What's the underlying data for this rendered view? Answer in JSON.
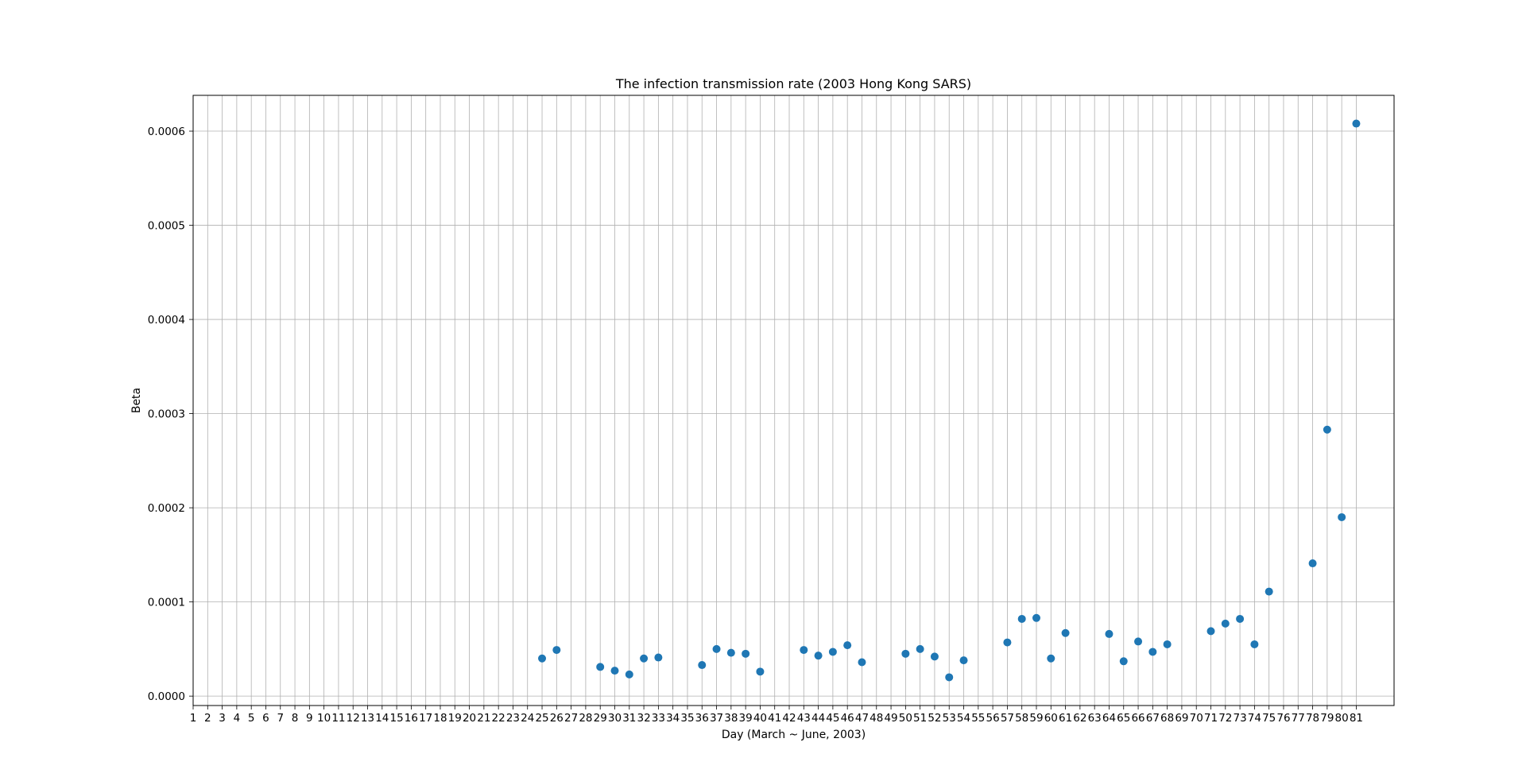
{
  "chart_data": {
    "type": "scatter",
    "title": "The infection transmission rate (2003 Hong Kong SARS)",
    "xlabel": "Day (March ~ June, 2003)",
    "ylabel": "Beta",
    "grid": true,
    "xlim": [
      1,
      83.6
    ],
    "ylim": [
      -1e-05,
      0.000638
    ],
    "x_ticks": [
      1,
      2,
      3,
      4,
      5,
      6,
      7,
      8,
      9,
      10,
      11,
      12,
      13,
      14,
      15,
      16,
      17,
      18,
      19,
      20,
      21,
      22,
      23,
      24,
      25,
      26,
      27,
      28,
      29,
      30,
      31,
      32,
      33,
      34,
      35,
      36,
      37,
      38,
      39,
      40,
      41,
      42,
      43,
      44,
      45,
      46,
      47,
      48,
      49,
      50,
      51,
      52,
      53,
      54,
      55,
      56,
      57,
      58,
      59,
      60,
      61,
      62,
      63,
      64,
      65,
      66,
      67,
      68,
      69,
      70,
      71,
      72,
      73,
      74,
      75,
      76,
      77,
      78,
      79,
      80,
      81
    ],
    "y_ticks": [
      "0.0000",
      "0.0001",
      "0.0002",
      "0.0003",
      "0.0004",
      "0.0005",
      "0.0006"
    ],
    "y_tick_values": [
      0,
      0.0001,
      0.0002,
      0.0003,
      0.0004,
      0.0005,
      0.0006
    ],
    "marker_color": "#1f77b4",
    "points": [
      {
        "x": 25,
        "y": 4e-05
      },
      {
        "x": 26,
        "y": 4.9e-05
      },
      {
        "x": 29,
        "y": 3.1e-05
      },
      {
        "x": 30,
        "y": 2.7e-05
      },
      {
        "x": 31,
        "y": 2.3e-05
      },
      {
        "x": 32,
        "y": 4e-05
      },
      {
        "x": 33,
        "y": 4.1e-05
      },
      {
        "x": 36,
        "y": 3.3e-05
      },
      {
        "x": 37,
        "y": 5e-05
      },
      {
        "x": 38,
        "y": 4.6e-05
      },
      {
        "x": 39,
        "y": 4.5e-05
      },
      {
        "x": 40,
        "y": 2.6e-05
      },
      {
        "x": 43,
        "y": 4.9e-05
      },
      {
        "x": 44,
        "y": 4.3e-05
      },
      {
        "x": 45,
        "y": 4.7e-05
      },
      {
        "x": 46,
        "y": 5.4e-05
      },
      {
        "x": 47,
        "y": 3.6e-05
      },
      {
        "x": 50,
        "y": 4.5e-05
      },
      {
        "x": 51,
        "y": 5e-05
      },
      {
        "x": 52,
        "y": 4.2e-05
      },
      {
        "x": 53,
        "y": 2e-05
      },
      {
        "x": 54,
        "y": 3.8e-05
      },
      {
        "x": 57,
        "y": 5.7e-05
      },
      {
        "x": 58,
        "y": 8.2e-05
      },
      {
        "x": 59,
        "y": 8.3e-05
      },
      {
        "x": 60,
        "y": 4e-05
      },
      {
        "x": 61,
        "y": 6.7e-05
      },
      {
        "x": 64,
        "y": 6.6e-05
      },
      {
        "x": 65,
        "y": 3.7e-05
      },
      {
        "x": 66,
        "y": 5.8e-05
      },
      {
        "x": 67,
        "y": 4.7e-05
      },
      {
        "x": 68,
        "y": 5.5e-05
      },
      {
        "x": 71,
        "y": 6.9e-05
      },
      {
        "x": 72,
        "y": 7.7e-05
      },
      {
        "x": 73,
        "y": 8.2e-05
      },
      {
        "x": 74,
        "y": 5.5e-05
      },
      {
        "x": 75,
        "y": 0.000111
      },
      {
        "x": 78,
        "y": 0.000141
      },
      {
        "x": 79,
        "y": 0.000283
      },
      {
        "x": 80,
        "y": 0.00019
      },
      {
        "x": 81,
        "y": 0.000608
      }
    ]
  }
}
